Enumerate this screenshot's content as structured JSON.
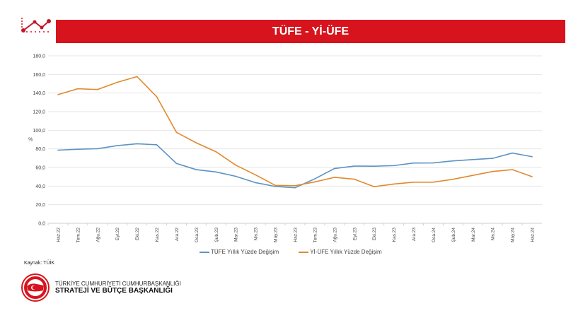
{
  "header": {
    "title": "TÜFE - Yİ-ÜFE"
  },
  "colors": {
    "banner": "#d7141d",
    "tufe": "#5b93c4",
    "yiufe": "#e08a2e"
  },
  "source": "Kaynak: TÜİK",
  "org": {
    "line1": "TÜRKİYE CUMHURİYETİ CUMHURBAŞKANLIĞI",
    "line2": "STRATEJİ VE BÜTÇE BAŞKANLIĞI"
  },
  "chart_data": {
    "type": "line",
    "title": "",
    "ylabel": "%",
    "ylim": [
      0,
      180
    ],
    "yticks": [
      "0,0",
      "20,0",
      "40,0",
      "60,0",
      "80,0",
      "100,0",
      "120,0",
      "140,0",
      "160,0",
      "180,0"
    ],
    "grid": true,
    "legend": "bottom",
    "categories": [
      "Haz.22",
      "Tem.22",
      "Ağu.22",
      "Eyl.22",
      "Eki.22",
      "Kas.22",
      "Ara.22",
      "Oca.23",
      "Şub.23",
      "Mar.23",
      "Nis.23",
      "May.23",
      "Haz.23",
      "Tem.23",
      "Ağu.23",
      "Eyl.23",
      "Eki.23",
      "Kas.23",
      "Ara.23",
      "Oca.24",
      "Şub.24",
      "Mar.24",
      "Nis.24",
      "May.24",
      "Haz.24"
    ],
    "series": [
      {
        "name": "TÜFE Yıllık Yüzde Değişim",
        "values": [
          78.6,
          79.6,
          80.2,
          83.5,
          85.5,
          84.4,
          64.3,
          57.7,
          55.2,
          50.5,
          43.7,
          39.6,
          38.2,
          47.8,
          58.9,
          61.5,
          61.4,
          62.0,
          64.8,
          64.9,
          67.1,
          68.5,
          69.8,
          75.5,
          71.6
        ]
      },
      {
        "name": "Yİ-ÜFE Yıllık Yüzde Değişim",
        "values": [
          138.3,
          144.6,
          143.8,
          151.5,
          157.7,
          136.0,
          97.7,
          86.5,
          76.9,
          62.5,
          52.1,
          40.8,
          40.4,
          44.5,
          49.4,
          47.4,
          39.4,
          42.2,
          44.2,
          44.2,
          47.3,
          51.5,
          55.7,
          57.7,
          50.1
        ]
      }
    ]
  }
}
